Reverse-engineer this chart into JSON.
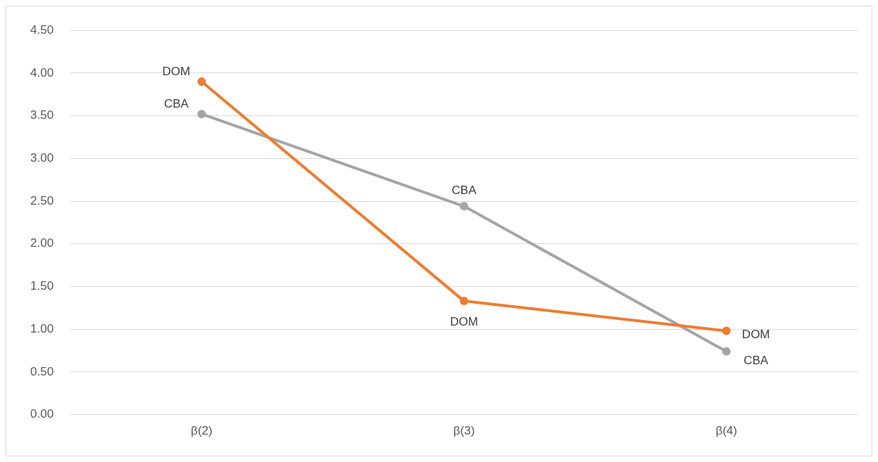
{
  "chart_data": {
    "type": "line",
    "categories": [
      "β(2)",
      "β(3)",
      "β(4)"
    ],
    "series": [
      {
        "name": "DOM",
        "color": "#ed7d31",
        "values": [
          3.9,
          1.33,
          0.98
        ]
      },
      {
        "name": "CBA",
        "color": "#a5a5a5",
        "values": [
          3.52,
          2.44,
          0.74
        ]
      }
    ],
    "ylim": [
      0,
      4.5
    ],
    "yticks": [
      {
        "value": 0,
        "label": "0.00"
      },
      {
        "value": 0.5,
        "label": "0.50"
      },
      {
        "value": 1,
        "label": "1.00"
      },
      {
        "value": 1.5,
        "label": "1.50"
      },
      {
        "value": 2,
        "label": "2.00"
      },
      {
        "value": 2.5,
        "label": "2.50"
      },
      {
        "value": 3,
        "label": "3.00"
      },
      {
        "value": 3.5,
        "label": "3.50"
      },
      {
        "value": 4,
        "label": "4.00"
      },
      {
        "value": 4.5,
        "label": "4.50"
      }
    ],
    "grid": "y",
    "legend": false,
    "marker": "circle",
    "line_style": "solid"
  }
}
